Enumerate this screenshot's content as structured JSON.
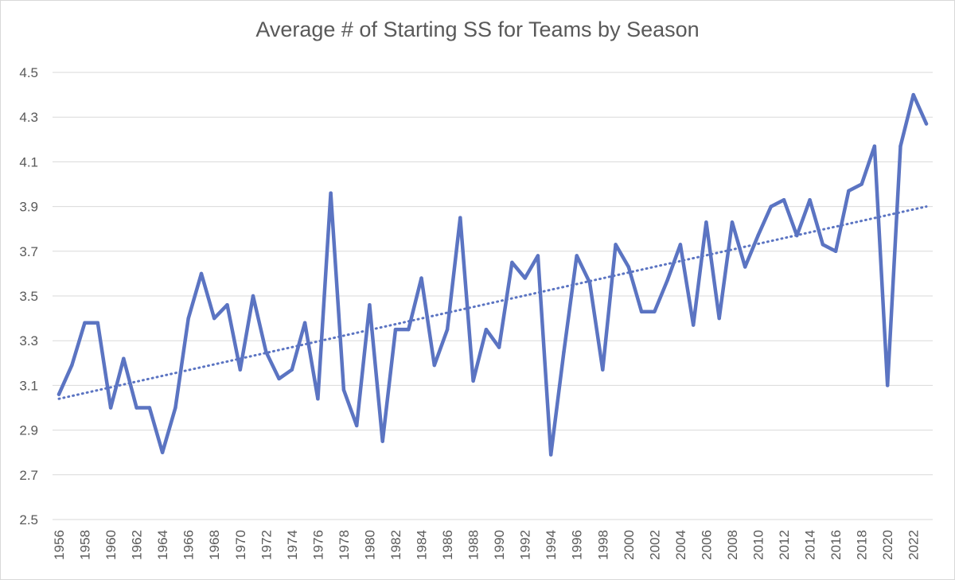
{
  "chart_data": {
    "type": "line",
    "title": "Average # of Starting SS for Teams by Season",
    "xlabel": "",
    "ylabel": "",
    "ylim": [
      2.5,
      4.5
    ],
    "yticks": [
      "2.5",
      "2.7",
      "2.9",
      "3.1",
      "3.3",
      "3.5",
      "3.7",
      "3.9",
      "4.1",
      "4.3",
      "4.5"
    ],
    "xtick_labels": [
      "1956",
      "1958",
      "1960",
      "1962",
      "1964",
      "1966",
      "1968",
      "1970",
      "1972",
      "1974",
      "1976",
      "1978",
      "1980",
      "1982",
      "1984",
      "1986",
      "1988",
      "1990",
      "1992",
      "1994",
      "1996",
      "1998",
      "2000",
      "2002",
      "2004",
      "2006",
      "2008",
      "2010",
      "2012",
      "2014",
      "2016",
      "2018",
      "2020",
      "2022"
    ],
    "grid": true,
    "legend": "none",
    "x": [
      1956,
      1957,
      1958,
      1959,
      1960,
      1961,
      1962,
      1963,
      1964,
      1965,
      1966,
      1967,
      1968,
      1969,
      1970,
      1971,
      1972,
      1973,
      1974,
      1975,
      1976,
      1977,
      1978,
      1979,
      1980,
      1981,
      1982,
      1983,
      1984,
      1985,
      1986,
      1987,
      1988,
      1989,
      1990,
      1991,
      1992,
      1993,
      1994,
      1995,
      1996,
      1997,
      1998,
      1999,
      2000,
      2001,
      2002,
      2003,
      2004,
      2005,
      2006,
      2007,
      2008,
      2009,
      2010,
      2011,
      2012,
      2013,
      2014,
      2015,
      2016,
      2017,
      2018,
      2019,
      2020,
      2021,
      2022,
      2023
    ],
    "series": [
      {
        "values": [
          3.06,
          3.19,
          3.38,
          3.38,
          3.0,
          3.22,
          3.0,
          3.0,
          2.8,
          3.0,
          3.4,
          3.6,
          3.4,
          3.46,
          3.17,
          3.5,
          3.25,
          3.13,
          3.17,
          3.38,
          3.04,
          3.96,
          3.08,
          2.92,
          3.46,
          2.85,
          3.35,
          3.35,
          3.58,
          3.19,
          3.35,
          3.85,
          3.12,
          3.35,
          3.27,
          3.65,
          3.58,
          3.68,
          2.79,
          3.25,
          3.68,
          3.56,
          3.17,
          3.73,
          3.63,
          3.43,
          3.43,
          3.57,
          3.73,
          3.37,
          3.83,
          3.4,
          3.83,
          3.63,
          3.77,
          3.9,
          3.93,
          3.77,
          3.93,
          3.73,
          3.7,
          3.97,
          4.0,
          4.17,
          3.1,
          4.17,
          4.4,
          4.27
        ],
        "color": "#5b74c2"
      }
    ],
    "trendline": {
      "type": "linear",
      "style": "dotted",
      "start": 3.04,
      "end": 3.9,
      "color": "#5b74c2"
    }
  }
}
